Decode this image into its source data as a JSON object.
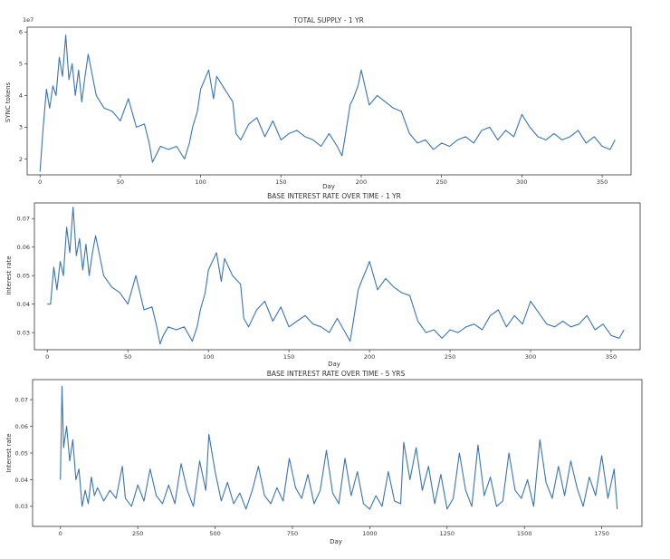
{
  "chart_data": [
    {
      "type": "line",
      "title": "TOTAL SUPPLY -  1 YR",
      "xlabel": "Day",
      "ylabel": "SYNC tokens",
      "offset_text": "1e7",
      "xlim": [
        -8,
        368
      ],
      "ylim": [
        1.5,
        6.15
      ],
      "xticks": [
        0,
        50,
        100,
        150,
        200,
        250,
        300,
        350
      ],
      "xtick_labels": [
        "0",
        "50",
        "100",
        "150",
        "200",
        "250",
        "300",
        "350"
      ],
      "yticks": [
        2,
        3,
        4,
        5,
        6
      ],
      "ytick_labels": [
        "2",
        "3",
        "4",
        "5",
        "6"
      ],
      "grid": false,
      "series": [
        {
          "color": "#3b75af",
          "x": [
            0,
            2,
            4,
            6,
            8,
            10,
            12,
            14,
            16,
            18,
            20,
            22,
            24,
            26,
            28,
            30,
            35,
            40,
            45,
            50,
            55,
            60,
            65,
            68,
            70,
            72,
            75,
            80,
            85,
            90,
            93,
            95,
            98,
            100,
            105,
            108,
            110,
            115,
            120,
            122,
            125,
            130,
            135,
            140,
            145,
            150,
            155,
            160,
            165,
            170,
            175,
            180,
            185,
            188,
            190,
            193,
            195,
            198,
            200,
            205,
            210,
            215,
            220,
            225,
            230,
            235,
            240,
            245,
            250,
            255,
            260,
            265,
            270,
            275,
            280,
            285,
            290,
            295,
            300,
            305,
            310,
            315,
            320,
            325,
            330,
            335,
            340,
            345,
            350,
            355,
            358
          ],
          "y": [
            1.6,
            3.0,
            4.2,
            3.6,
            4.3,
            4.0,
            5.2,
            4.6,
            5.9,
            4.5,
            5.0,
            4.0,
            4.8,
            3.8,
            4.6,
            5.3,
            4.0,
            3.6,
            3.5,
            3.2,
            3.9,
            3.0,
            3.1,
            2.5,
            1.9,
            2.1,
            2.4,
            2.3,
            2.4,
            2.0,
            2.5,
            3.0,
            3.5,
            4.2,
            4.8,
            3.9,
            4.6,
            4.2,
            3.8,
            2.8,
            2.6,
            3.1,
            3.3,
            2.7,
            3.2,
            2.6,
            2.8,
            2.9,
            2.7,
            2.6,
            2.4,
            2.8,
            2.4,
            2.1,
            2.7,
            3.7,
            3.9,
            4.3,
            4.8,
            3.7,
            4.0,
            3.8,
            3.6,
            3.5,
            2.8,
            2.5,
            2.6,
            2.3,
            2.5,
            2.4,
            2.6,
            2.7,
            2.5,
            2.9,
            3.0,
            2.6,
            2.9,
            2.7,
            3.4,
            3.0,
            2.7,
            2.6,
            2.8,
            2.6,
            2.7,
            2.9,
            2.5,
            2.7,
            2.4,
            2.3,
            2.6
          ]
        }
      ]
    },
    {
      "type": "line",
      "title": "BASE INTEREST RATE OVER TIME - 1 YR",
      "xlabel": "Day",
      "ylabel": "Interest rate",
      "xlim": [
        -8,
        368
      ],
      "ylim": [
        0.024,
        0.0755
      ],
      "xticks": [
        0,
        50,
        100,
        150,
        200,
        250,
        300,
        350
      ],
      "xtick_labels": [
        "0",
        "50",
        "100",
        "150",
        "200",
        "250",
        "300",
        "350"
      ],
      "yticks": [
        0.03,
        0.04,
        0.05,
        0.06,
        0.07
      ],
      "ytick_labels": [
        "0.03",
        "0.04",
        "0.05",
        "0.06",
        "0.07"
      ],
      "grid": false,
      "series": [
        {
          "color": "#3b75af",
          "x": [
            0,
            2,
            4,
            6,
            8,
            10,
            12,
            14,
            16,
            18,
            20,
            22,
            24,
            26,
            28,
            30,
            35,
            40,
            45,
            50,
            55,
            60,
            65,
            68,
            70,
            72,
            75,
            80,
            85,
            90,
            93,
            95,
            98,
            100,
            105,
            108,
            110,
            115,
            120,
            122,
            125,
            130,
            135,
            140,
            145,
            150,
            155,
            160,
            165,
            170,
            175,
            180,
            185,
            188,
            190,
            193,
            195,
            198,
            200,
            205,
            210,
            215,
            220,
            225,
            230,
            235,
            240,
            245,
            250,
            255,
            260,
            265,
            270,
            275,
            280,
            285,
            290,
            295,
            300,
            305,
            310,
            315,
            320,
            325,
            330,
            335,
            340,
            345,
            350,
            355,
            358
          ],
          "y": [
            0.04,
            0.04,
            0.053,
            0.045,
            0.055,
            0.05,
            0.067,
            0.058,
            0.074,
            0.057,
            0.063,
            0.052,
            0.061,
            0.05,
            0.058,
            0.064,
            0.05,
            0.046,
            0.044,
            0.04,
            0.05,
            0.038,
            0.039,
            0.032,
            0.026,
            0.029,
            0.032,
            0.031,
            0.032,
            0.027,
            0.032,
            0.038,
            0.044,
            0.052,
            0.058,
            0.048,
            0.056,
            0.05,
            0.047,
            0.035,
            0.032,
            0.038,
            0.041,
            0.034,
            0.039,
            0.032,
            0.034,
            0.036,
            0.033,
            0.032,
            0.03,
            0.035,
            0.03,
            0.027,
            0.034,
            0.045,
            0.048,
            0.052,
            0.055,
            0.045,
            0.049,
            0.046,
            0.044,
            0.043,
            0.034,
            0.03,
            0.031,
            0.028,
            0.031,
            0.03,
            0.032,
            0.033,
            0.031,
            0.036,
            0.038,
            0.032,
            0.036,
            0.033,
            0.041,
            0.037,
            0.033,
            0.032,
            0.034,
            0.032,
            0.033,
            0.036,
            0.031,
            0.033,
            0.029,
            0.028,
            0.031
          ]
        }
      ]
    },
    {
      "type": "line",
      "title": "BASE INTEREST RATE OVER TIME - 5 YRS",
      "xlabel": "Day",
      "ylabel": "Interest rate",
      "xlim": [
        -90,
        1880
      ],
      "ylim": [
        0.0225,
        0.0775
      ],
      "xticks": [
        0,
        250,
        500,
        750,
        1000,
        1250,
        1500,
        1750
      ],
      "xtick_labels": [
        "0",
        "250",
        "500",
        "750",
        "1000",
        "1250",
        "1500",
        "1750"
      ],
      "yticks": [
        0.03,
        0.04,
        0.05,
        0.06,
        0.07
      ],
      "ytick_labels": [
        "0.03",
        "0.04",
        "0.05",
        "0.06",
        "0.07"
      ],
      "grid": false,
      "series": [
        {
          "color": "#3b75af",
          "x": [
            0,
            5,
            10,
            20,
            30,
            40,
            50,
            60,
            70,
            80,
            90,
            100,
            110,
            120,
            140,
            160,
            180,
            200,
            210,
            230,
            250,
            270,
            290,
            310,
            330,
            350,
            370,
            390,
            410,
            430,
            450,
            470,
            480,
            500,
            520,
            540,
            560,
            580,
            600,
            620,
            640,
            660,
            680,
            700,
            720,
            740,
            760,
            780,
            800,
            820,
            840,
            860,
            880,
            900,
            920,
            940,
            960,
            980,
            1000,
            1020,
            1040,
            1060,
            1080,
            1100,
            1110,
            1130,
            1150,
            1170,
            1190,
            1210,
            1230,
            1250,
            1270,
            1290,
            1310,
            1330,
            1350,
            1370,
            1390,
            1410,
            1430,
            1450,
            1470,
            1490,
            1510,
            1530,
            1550,
            1570,
            1590,
            1610,
            1630,
            1650,
            1670,
            1690,
            1710,
            1730,
            1750,
            1770,
            1790,
            1800
          ],
          "y": [
            0.04,
            0.075,
            0.052,
            0.06,
            0.047,
            0.055,
            0.04,
            0.044,
            0.03,
            0.036,
            0.031,
            0.041,
            0.034,
            0.037,
            0.032,
            0.036,
            0.033,
            0.045,
            0.033,
            0.03,
            0.038,
            0.032,
            0.044,
            0.034,
            0.031,
            0.038,
            0.031,
            0.046,
            0.036,
            0.03,
            0.047,
            0.036,
            0.057,
            0.043,
            0.032,
            0.039,
            0.031,
            0.035,
            0.029,
            0.036,
            0.045,
            0.034,
            0.031,
            0.037,
            0.032,
            0.048,
            0.037,
            0.033,
            0.042,
            0.031,
            0.036,
            0.051,
            0.035,
            0.031,
            0.048,
            0.034,
            0.043,
            0.031,
            0.029,
            0.034,
            0.03,
            0.043,
            0.032,
            0.031,
            0.054,
            0.04,
            0.052,
            0.036,
            0.045,
            0.031,
            0.042,
            0.029,
            0.033,
            0.05,
            0.036,
            0.03,
            0.053,
            0.034,
            0.041,
            0.03,
            0.032,
            0.05,
            0.036,
            0.033,
            0.04,
            0.03,
            0.055,
            0.039,
            0.033,
            0.045,
            0.034,
            0.047,
            0.037,
            0.03,
            0.041,
            0.034,
            0.049,
            0.033,
            0.044,
            0.029
          ]
        }
      ]
    }
  ]
}
